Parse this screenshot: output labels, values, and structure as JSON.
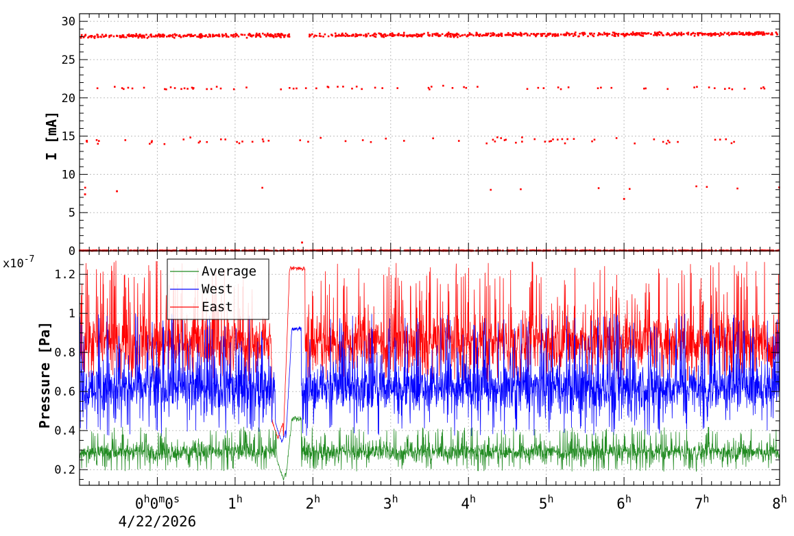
{
  "colors": {
    "current": "#ff0000",
    "average": "#228b22",
    "west": "#0000ff",
    "east": "#ff0000",
    "grid": "#bdbdbd"
  },
  "time_axis": {
    "tick_labels": [
      {
        "t": 0.0,
        "hour": "0",
        "rest": "0",
        "rest2": "0",
        "u1": "h",
        "u2": "m",
        "u3": "s",
        "date": "4/22/2026"
      },
      {
        "t": 1.0,
        "hour": "1",
        "u1": "h"
      },
      {
        "t": 2.0,
        "hour": "2",
        "u1": "h"
      },
      {
        "t": 3.0,
        "hour": "3",
        "u1": "h"
      },
      {
        "t": 4.0,
        "hour": "4",
        "u1": "h"
      },
      {
        "t": 5.0,
        "hour": "5",
        "u1": "h"
      },
      {
        "t": 6.0,
        "hour": "6",
        "u1": "h"
      },
      {
        "t": 7.0,
        "hour": "7",
        "u1": "h"
      },
      {
        "t": 8.0,
        "hour": "8",
        "u1": "h"
      }
    ],
    "date_label": "4/22/2026",
    "range_hours": [
      -1.0,
      8.0
    ]
  },
  "chart_data": [
    {
      "type": "scatter",
      "ylabel": "I [mA]",
      "ylim": [
        0,
        31
      ],
      "yticks": [
        0,
        5,
        10,
        15,
        20,
        25,
        30
      ],
      "xlim": [
        -1.0,
        8.0
      ],
      "grid": true,
      "series": [
        {
          "bands": [
            {
              "level": 28.1,
              "spread": 0.35,
              "density": "continuous"
            },
            {
              "level": 21.3,
              "spread": 0.35,
              "density": "sparse"
            },
            {
              "level": 14.4,
              "spread": 0.6,
              "density": "sparse"
            },
            {
              "level": 8.2,
              "spread": 0.4,
              "density": "rare"
            },
            {
              "level": 0.05,
              "spread": 0.05,
              "density": "continuous"
            }
          ],
          "outliers": [
            [
              1.86,
              1.1
            ],
            [
              6.0,
              6.8
            ],
            [
              -0.52,
              7.8
            ],
            [
              -0.93,
              7.4
            ]
          ]
        }
      ]
    },
    {
      "type": "line",
      "ylabel": "Pressure [Pa]",
      "y_multiplier_label": "x10",
      "y_multiplier_exp": "-7",
      "ylim": [
        0.12,
        1.32
      ],
      "yticks": [
        "0.2",
        "0.4",
        "0.6",
        "0.8",
        "1",
        "1.2"
      ],
      "xlim": [
        -1.0,
        8.0
      ],
      "grid": true,
      "legend": {
        "position": "top-left",
        "entries": [
          {
            "key": "average",
            "name": "Average"
          },
          {
            "key": "west",
            "name": "West"
          },
          {
            "key": "east",
            "name": "East"
          }
        ]
      },
      "series": [
        {
          "key": "average",
          "name": "Average",
          "baseline": 0.29,
          "range": [
            0.19,
            0.42
          ],
          "dip": {
            "t": 1.62,
            "min": 0.15
          },
          "bump": {
            "from": 1.65,
            "to": 1.85,
            "level": 0.46
          }
        },
        {
          "key": "west",
          "name": "West",
          "baseline": 0.62,
          "range": [
            0.37,
            1.0
          ],
          "dip": {
            "t": 1.6,
            "min": 0.34
          },
          "bump": {
            "from": 1.65,
            "to": 1.85,
            "level": 0.92
          }
        },
        {
          "key": "east",
          "name": "East",
          "baseline": 0.85,
          "range": [
            0.65,
            1.27
          ],
          "dip": {
            "t": 1.55,
            "min": 0.36
          },
          "bump": {
            "from": 1.62,
            "to": 1.9,
            "level": 1.23
          }
        }
      ]
    }
  ]
}
